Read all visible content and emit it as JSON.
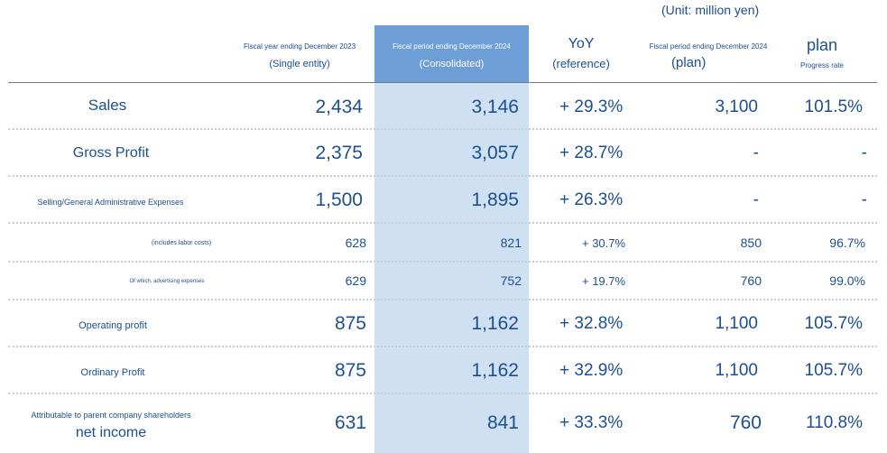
{
  "unit_label": "(Unit: million yen)",
  "headers": {
    "fy2023_line1": "Fiscal year ending December 2023",
    "fy2023_line2": "(Single entity)",
    "fy2024_line1": "Fiscal period ending December 2024",
    "fy2024_line2": "(Consolidated)",
    "yoy_line1": "YoY",
    "yoy_line2": "(reference)",
    "plan_line1": "Fiscal period ending December 2024",
    "plan_line2": "(plan)",
    "progress_line1": "plan",
    "progress_line2": "Progress rate"
  },
  "rows": [
    {
      "label": "Sales",
      "fy2023": "2,434",
      "fy2024": "3,146",
      "yoy": "+ 29.3%",
      "plan": "3,100",
      "progress": "101.5%"
    },
    {
      "label": "Gross Profit",
      "fy2023": "2,375",
      "fy2024": "3,057",
      "yoy": "+ 28.7%",
      "plan": "-",
      "progress": "-"
    },
    {
      "label": "Selling/General Administrative Expenses",
      "fy2023": "1,500",
      "fy2024": "1,895",
      "yoy": "+ 26.3%",
      "plan": "-",
      "progress": "-"
    },
    {
      "label": "(includes labor costs)",
      "fy2023": "628",
      "fy2024": "821",
      "yoy": "+ 30.7%",
      "plan": "850",
      "progress": "96.7%"
    },
    {
      "label": "Of which, advertising expenses",
      "fy2023": "629",
      "fy2024": "752",
      "yoy": "+ 19.7%",
      "plan": "760",
      "progress": "99.0%"
    },
    {
      "label": "Operating profit",
      "fy2023": "875",
      "fy2024": "1,162",
      "yoy": "+ 32.8%",
      "plan": "1,100",
      "progress": "105.7%"
    },
    {
      "label": "Ordinary Profit",
      "fy2023": "875",
      "fy2024": "1,162",
      "yoy": "+ 32.9%",
      "plan": "1,100",
      "progress": "105.7%"
    },
    {
      "label_line1": "Attributable to parent company shareholders",
      "label_line2": "net income",
      "fy2023": "631",
      "fy2024": "841",
      "yoy": "+ 33.3%",
      "plan": "760",
      "progress": "110.8%"
    }
  ]
}
